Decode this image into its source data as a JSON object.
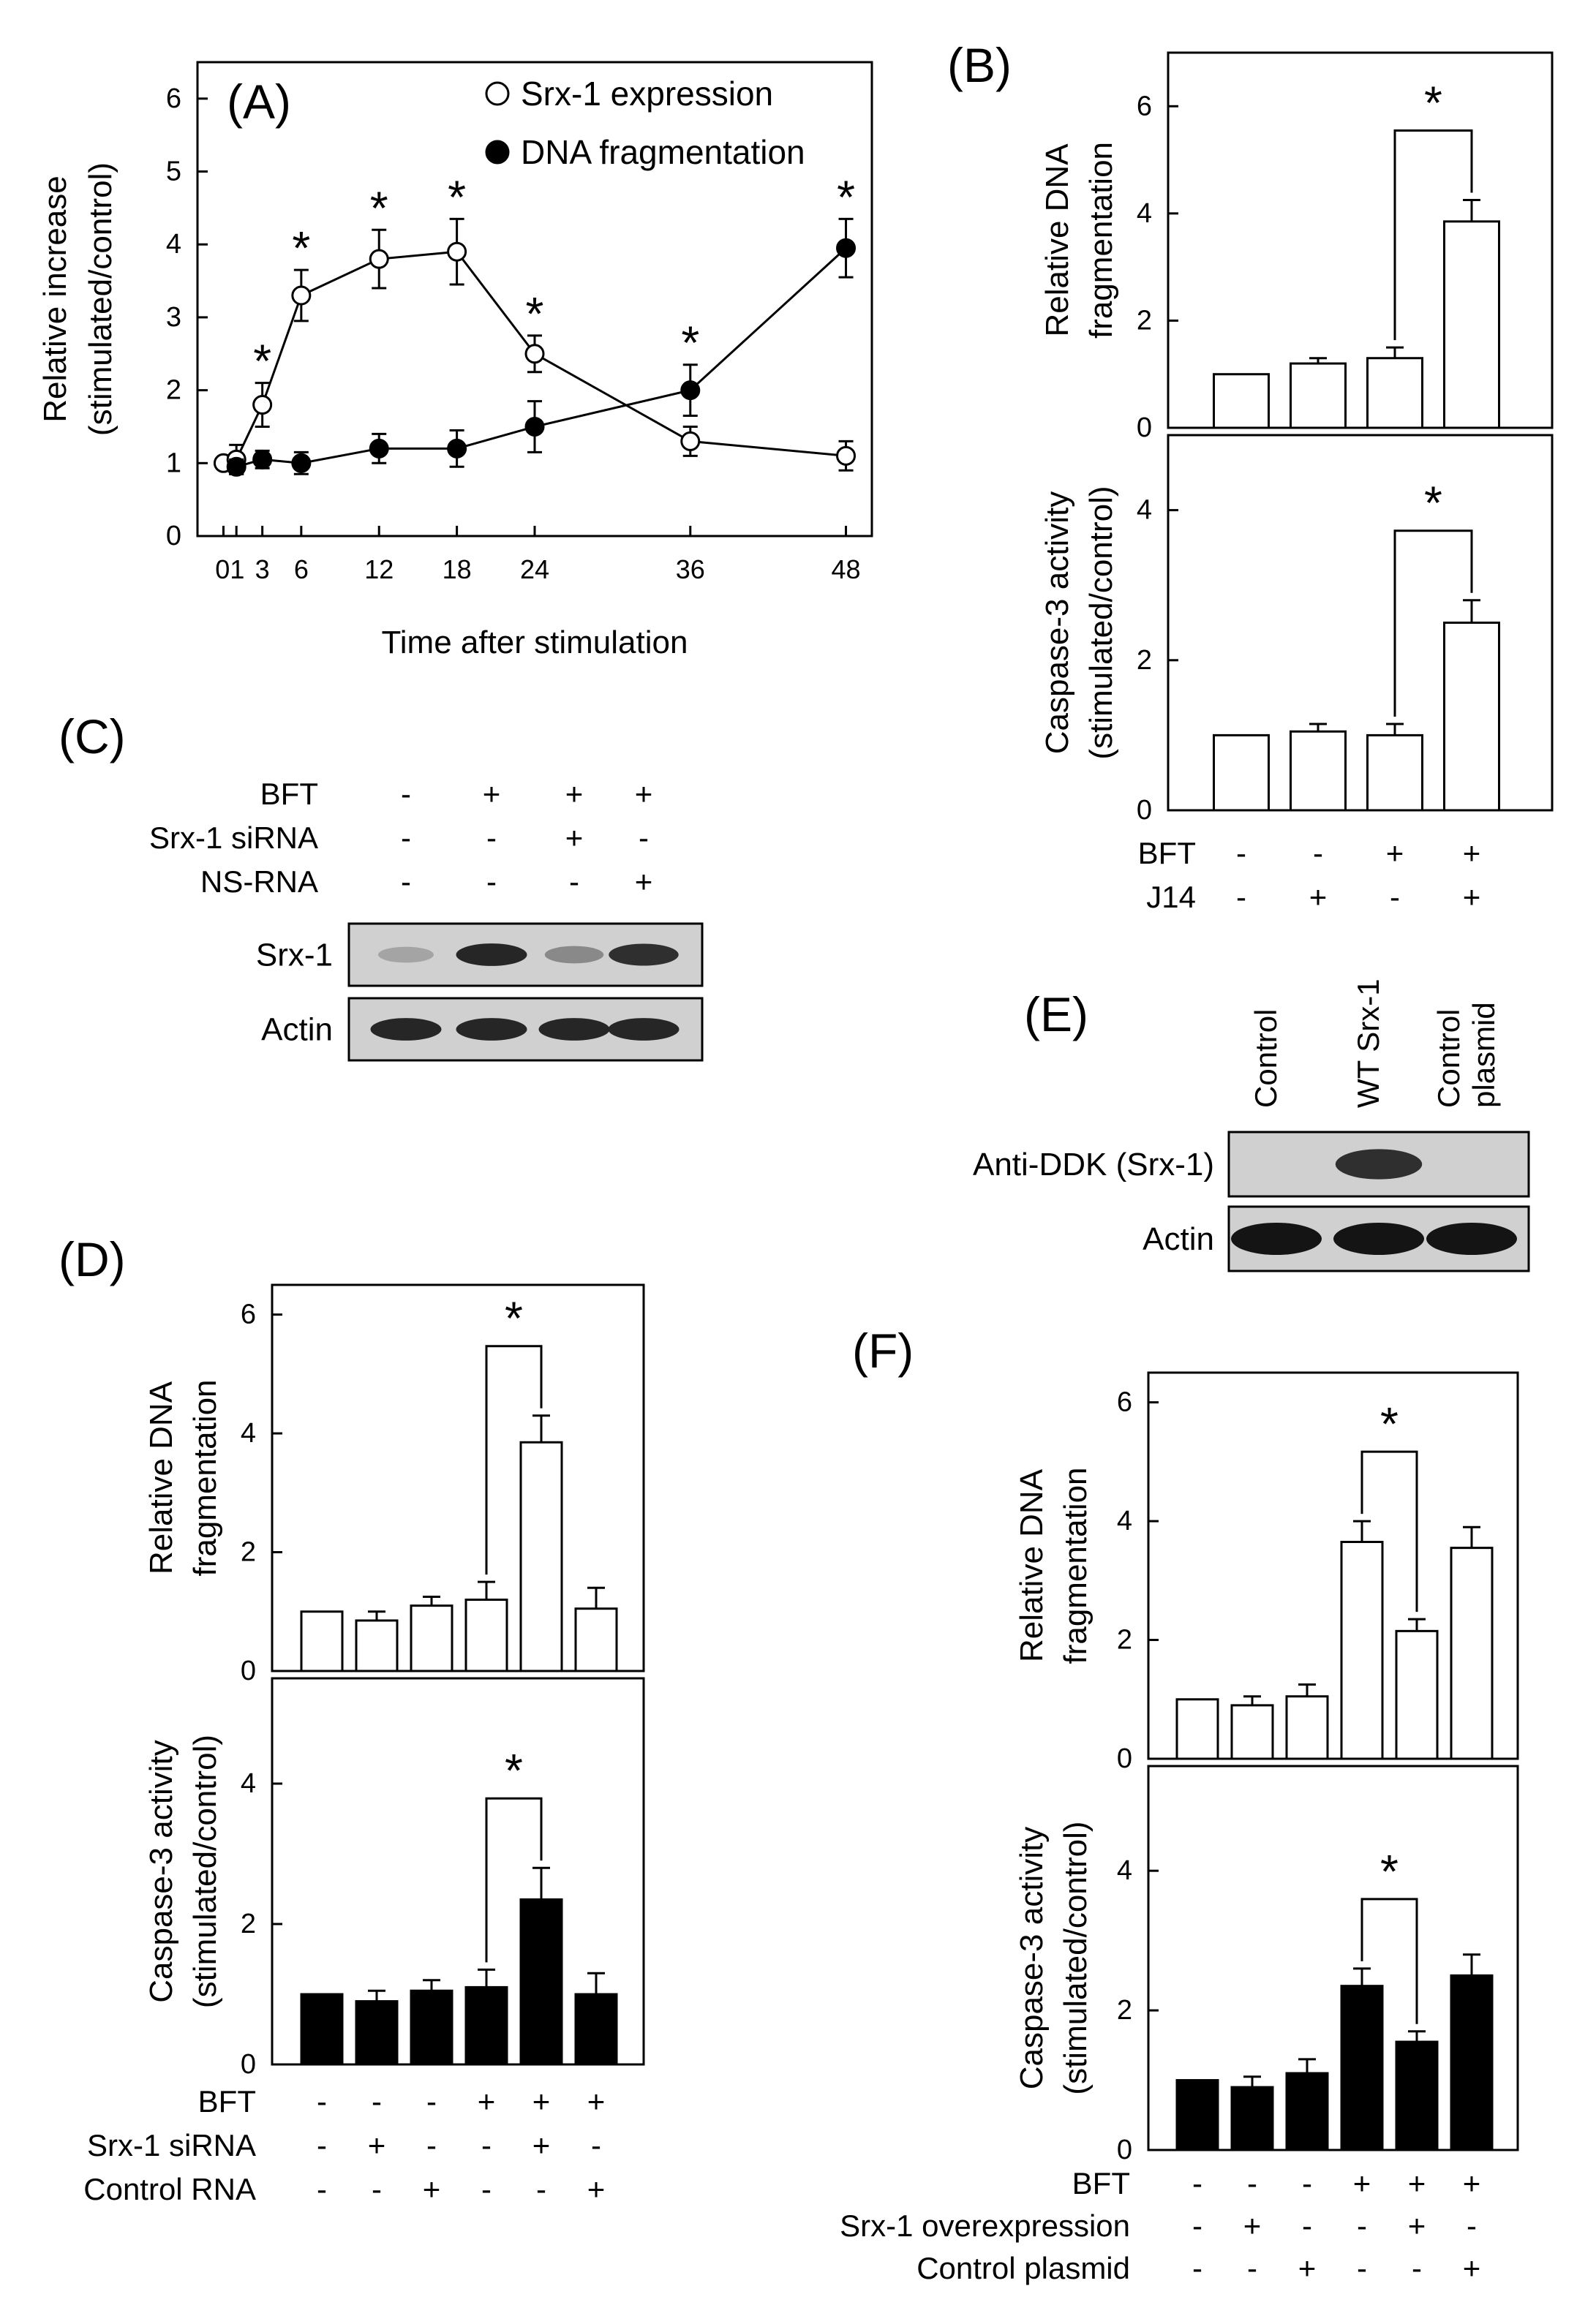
{
  "figure_name": "multi-panel-figure",
  "colors": {
    "ink": "#000000",
    "paper": "#ffffff",
    "blot_bg": "#d0d0d0",
    "band": "#1a1a1a"
  },
  "panels": {
    "A": {
      "label": "(A)"
    },
    "B": {
      "label": "(B)"
    },
    "C": {
      "label": "(C)"
    },
    "D": {
      "label": "(D)"
    },
    "E": {
      "label": "(E)"
    },
    "F": {
      "label": "(F)"
    }
  },
  "blot_c": {
    "rows": [
      {
        "label": "BFT",
        "signs": [
          "-",
          "+",
          "+",
          "+"
        ]
      },
      {
        "label": "Srx-1 siRNA",
        "signs": [
          "-",
          "-",
          "+",
          "-"
        ]
      },
      {
        "label": "NS-RNA",
        "signs": [
          "-",
          "-",
          "-",
          "+"
        ]
      }
    ],
    "bands": [
      {
        "label": "Srx-1",
        "intensity": [
          0.2,
          0.9,
          0.35,
          0.85
        ]
      },
      {
        "label": "Actin",
        "intensity": [
          0.9,
          0.9,
          0.9,
          0.9
        ]
      }
    ]
  },
  "blot_e": {
    "lane_labels": [
      "Control",
      "WT Srx-1",
      "Control plasmid"
    ],
    "bands": [
      {
        "label": "Anti-DDK  (Srx-1)",
        "intensity": [
          0,
          0.85,
          0
        ]
      },
      {
        "label": "Actin",
        "intensity": [
          1,
          1,
          1
        ]
      }
    ]
  },
  "chart_data": [
    {
      "id": "A",
      "type": "line",
      "title": "",
      "xlabel": "Time  after  stimulation",
      "ylabel": "Relative  increase (stimulated/control)",
      "ylabel_lines": [
        "Relative  increase",
        "(stimulated/control)"
      ],
      "xlim": [
        -2,
        50
      ],
      "ylim": [
        0,
        6.5
      ],
      "x_ticks": [
        0,
        1,
        3,
        6,
        12,
        18,
        24,
        36,
        48
      ],
      "x_tick_labels": [
        "01",
        "3",
        "6",
        "12",
        "18",
        "24",
        "36",
        "48"
      ],
      "y_ticks": [
        0,
        1,
        2,
        3,
        4,
        5,
        6
      ],
      "y_tick_labels": [
        "0",
        "1",
        "2",
        "3",
        "4",
        "5",
        "6"
      ],
      "legend": "top-right",
      "series": [
        {
          "name": "Srx-1 expression",
          "marker": "open-circle",
          "x": [
            0,
            1,
            3,
            6,
            12,
            18,
            24,
            36,
            48
          ],
          "y": [
            1.0,
            1.05,
            1.8,
            3.3,
            3.8,
            3.9,
            2.5,
            1.3,
            1.1
          ],
          "err": [
            0.05,
            0.2,
            0.3,
            0.35,
            0.4,
            0.45,
            0.25,
            0.2,
            0.2
          ]
        },
        {
          "name": "DNA fragmentation",
          "marker": "filled-circle",
          "x": [
            1,
            3,
            6,
            12,
            18,
            24,
            36,
            48
          ],
          "y": [
            0.95,
            1.05,
            1.0,
            1.2,
            1.2,
            1.5,
            2.0,
            3.95
          ],
          "err": [
            0.1,
            0.12,
            0.15,
            0.2,
            0.25,
            0.35,
            0.35,
            0.4
          ]
        }
      ],
      "significance": [
        {
          "x": 3,
          "text": "*"
        },
        {
          "x": 6,
          "text": "*"
        },
        {
          "x": 12,
          "text": "*"
        },
        {
          "x": 18,
          "text": "*"
        },
        {
          "x": 24,
          "text": "*"
        },
        {
          "x": 36,
          "text": "*"
        },
        {
          "x": 48,
          "text": "*"
        }
      ]
    },
    {
      "id": "B-top",
      "type": "bar",
      "ylabel": "Relative DNA fragmentation",
      "ylabel_lines": [
        "Relative DNA",
        "fragmentation"
      ],
      "fill": "open",
      "ylim": [
        0,
        7
      ],
      "y_ticks": [
        0,
        2,
        4,
        6
      ],
      "y_tick_labels": [
        "0",
        "2",
        "4",
        "6"
      ],
      "values": [
        1.0,
        1.2,
        1.3,
        3.85
      ],
      "err": [
        0.0,
        0.1,
        0.2,
        0.4
      ],
      "bracket": {
        "from": 2,
        "to": 3,
        "text": "*"
      }
    },
    {
      "id": "B-bottom",
      "type": "bar",
      "ylabel": "Caspase-3 activity (stimulated/control)",
      "ylabel_lines": [
        "Caspase-3 activity",
        "(stimulated/control)"
      ],
      "fill": "open",
      "ylim": [
        0,
        5
      ],
      "y_ticks": [
        0,
        2,
        4
      ],
      "y_tick_labels": [
        "0",
        "2",
        "4"
      ],
      "values": [
        1.0,
        1.05,
        1.0,
        2.5
      ],
      "err": [
        0.0,
        0.1,
        0.15,
        0.3
      ],
      "bracket": {
        "from": 2,
        "to": 3,
        "text": "*"
      },
      "conditions": [
        {
          "label": "BFT",
          "signs": [
            "-",
            "-",
            "+",
            "+"
          ]
        },
        {
          "label": "J14",
          "signs": [
            "-",
            "+",
            "-",
            "+"
          ]
        }
      ]
    },
    {
      "id": "D-top",
      "type": "bar",
      "ylabel": "Relative DNA fragmentation",
      "ylabel_lines": [
        "Relative DNA",
        "fragmentation"
      ],
      "fill": "open",
      "ylim": [
        0,
        6.5
      ],
      "y_ticks": [
        0,
        2,
        4,
        6
      ],
      "y_tick_labels": [
        "0",
        "2",
        "4",
        "6"
      ],
      "values": [
        1.0,
        0.85,
        1.1,
        1.2,
        3.85,
        1.05
      ],
      "err": [
        0.0,
        0.15,
        0.15,
        0.3,
        0.45,
        0.35
      ],
      "bracket": {
        "from": 3,
        "to": 4,
        "text": "*"
      }
    },
    {
      "id": "D-bottom",
      "type": "bar",
      "ylabel": "Caspase-3 activity (stimulated/control)",
      "ylabel_lines": [
        "Caspase-3 activity",
        "(stimulated/control)"
      ],
      "fill": "solid",
      "ylim": [
        0,
        5.5
      ],
      "y_ticks": [
        0,
        2,
        4
      ],
      "y_tick_labels": [
        "0",
        "2",
        "4"
      ],
      "values": [
        1.0,
        0.9,
        1.05,
        1.1,
        2.35,
        1.0
      ],
      "err": [
        0.0,
        0.15,
        0.15,
        0.25,
        0.45,
        0.3
      ],
      "bracket": {
        "from": 3,
        "to": 4,
        "text": "*"
      },
      "conditions": [
        {
          "label": "BFT",
          "signs": [
            "-",
            "-",
            "-",
            "+",
            "+",
            "+"
          ]
        },
        {
          "label": "Srx-1 siRNA",
          "signs": [
            "-",
            "+",
            "-",
            "-",
            "+",
            "-"
          ]
        },
        {
          "label": "Control RNA",
          "signs": [
            "-",
            "-",
            "+",
            "-",
            "-",
            "+"
          ]
        }
      ]
    },
    {
      "id": "F-top",
      "type": "bar",
      "ylabel": "Relative DNA fragmentation",
      "ylabel_lines": [
        "Relative DNA",
        "fragmentation"
      ],
      "fill": "open",
      "ylim": [
        0,
        6.5
      ],
      "y_ticks": [
        0,
        2,
        4,
        6
      ],
      "y_tick_labels": [
        "0",
        "2",
        "4",
        "6"
      ],
      "values": [
        1.0,
        0.9,
        1.05,
        3.65,
        2.15,
        3.55
      ],
      "err": [
        0.0,
        0.15,
        0.2,
        0.35,
        0.2,
        0.35
      ],
      "bracket": {
        "from": 3,
        "to": 4,
        "text": "*"
      }
    },
    {
      "id": "F-bottom",
      "type": "bar",
      "ylabel": "Caspase-3 activity (stimulated/control)",
      "ylabel_lines": [
        "Caspase-3 activity",
        "(stimulated/control)"
      ],
      "fill": "solid",
      "ylim": [
        0,
        5.5
      ],
      "y_ticks": [
        0,
        2,
        4
      ],
      "y_tick_labels": [
        "0",
        "2",
        "4"
      ],
      "values": [
        1.0,
        0.9,
        1.1,
        2.35,
        1.55,
        2.5
      ],
      "err": [
        0.0,
        0.15,
        0.2,
        0.25,
        0.15,
        0.3
      ],
      "bracket": {
        "from": 3,
        "to": 4,
        "text": "*"
      },
      "conditions": [
        {
          "label": "BFT",
          "signs": [
            "-",
            "-",
            "-",
            "+",
            "+",
            "+"
          ]
        },
        {
          "label": "Srx-1 overexpression",
          "signs": [
            "-",
            "+",
            "-",
            "-",
            "+",
            "-"
          ]
        },
        {
          "label": "Control plasmid",
          "signs": [
            "-",
            "-",
            "+",
            "-",
            "-",
            "+"
          ]
        }
      ]
    }
  ]
}
